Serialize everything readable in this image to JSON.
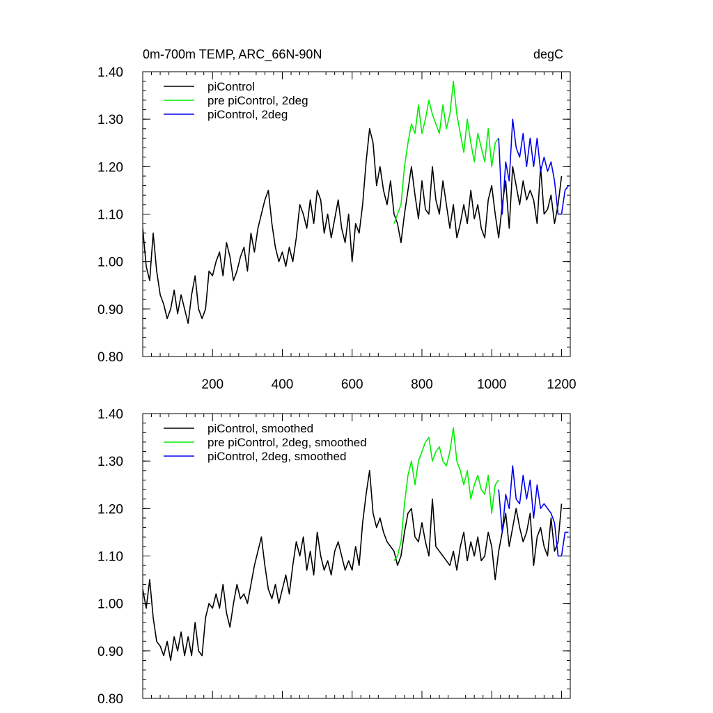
{
  "chart_data": [
    {
      "type": "line",
      "title_left": "0m-700m TEMP, ARC_66N-90N",
      "title_right": "degC",
      "xlabel": "",
      "ylabel": "",
      "xlim": [
        0,
        1225
      ],
      "ylim": [
        0.8,
        1.4
      ],
      "x_ticks": [
        200,
        400,
        600,
        800,
        1000,
        1200
      ],
      "x_tick_labels": [
        "200",
        "400",
        "600",
        "800",
        "1000",
        "1200"
      ],
      "y_ticks": [
        0.8,
        0.9,
        1.0,
        1.1,
        1.2,
        1.3,
        1.4
      ],
      "y_tick_labels": [
        "0.80",
        "0.90",
        "1.00",
        "1.10",
        "1.20",
        "1.30",
        "1.40"
      ],
      "legend_position": "top-left",
      "series": [
        {
          "name": "piControl",
          "color": "#000000",
          "x": [
            0,
            10,
            20,
            30,
            40,
            50,
            60,
            70,
            80,
            90,
            100,
            110,
            120,
            130,
            140,
            150,
            160,
            170,
            180,
            190,
            200,
            210,
            220,
            230,
            240,
            250,
            260,
            270,
            280,
            290,
            300,
            310,
            320,
            330,
            340,
            350,
            360,
            370,
            380,
            390,
            400,
            410,
            420,
            430,
            440,
            450,
            460,
            470,
            480,
            490,
            500,
            510,
            520,
            530,
            540,
            550,
            560,
            570,
            580,
            590,
            600,
            610,
            620,
            630,
            640,
            650,
            660,
            670,
            680,
            690,
            700,
            710,
            720,
            730,
            740,
            750,
            760,
            770,
            780,
            790,
            800,
            810,
            820,
            830,
            840,
            850,
            860,
            870,
            880,
            890,
            900,
            910,
            920,
            930,
            940,
            950,
            960,
            970,
            980,
            990,
            1000,
            1010,
            1020,
            1030,
            1040,
            1050,
            1060,
            1070,
            1080,
            1090,
            1100,
            1110,
            1120,
            1130,
            1140,
            1150,
            1160,
            1170,
            1180,
            1190,
            1200
          ],
          "values": [
            1.07,
            0.99,
            0.96,
            1.06,
            0.98,
            0.93,
            0.91,
            0.88,
            0.9,
            0.94,
            0.89,
            0.93,
            0.9,
            0.87,
            0.93,
            0.97,
            0.9,
            0.88,
            0.9,
            0.98,
            0.97,
            1.0,
            1.02,
            0.97,
            1.04,
            1.01,
            0.96,
            0.98,
            1.01,
            1.03,
            0.98,
            1.06,
            1.02,
            1.07,
            1.1,
            1.13,
            1.15,
            1.08,
            1.03,
            1.0,
            1.02,
            0.99,
            1.03,
            1.0,
            1.05,
            1.12,
            1.1,
            1.07,
            1.13,
            1.08,
            1.15,
            1.13,
            1.06,
            1.1,
            1.05,
            1.09,
            1.13,
            1.07,
            1.04,
            1.1,
            1.0,
            1.08,
            1.06,
            1.12,
            1.21,
            1.28,
            1.25,
            1.16,
            1.2,
            1.15,
            1.12,
            1.17,
            1.1,
            1.08,
            1.04,
            1.1,
            1.15,
            1.2,
            1.14,
            1.09,
            1.17,
            1.11,
            1.1,
            1.2,
            1.13,
            1.1,
            1.17,
            1.12,
            1.07,
            1.12,
            1.05,
            1.08,
            1.12,
            1.08,
            1.15,
            1.09,
            1.12,
            1.07,
            1.05,
            1.13,
            1.16,
            1.1,
            1.05,
            1.12,
            1.17,
            1.07,
            1.2,
            1.16,
            1.12,
            1.17,
            1.13,
            1.15,
            1.13,
            1.08,
            1.2,
            1.1,
            1.11,
            1.14,
            1.08,
            1.12,
            1.18
          ]
        },
        {
          "name": "pre piControl, 2deg",
          "color": "#00ee00",
          "x": [
            720,
            730,
            740,
            750,
            760,
            770,
            780,
            790,
            800,
            810,
            820,
            830,
            840,
            850,
            860,
            870,
            880,
            890,
            900,
            910,
            920,
            930,
            940,
            950,
            960,
            970,
            980,
            990,
            1000,
            1010,
            1020
          ],
          "values": [
            1.08,
            1.1,
            1.12,
            1.2,
            1.25,
            1.29,
            1.27,
            1.33,
            1.27,
            1.3,
            1.34,
            1.31,
            1.29,
            1.27,
            1.33,
            1.28,
            1.31,
            1.38,
            1.31,
            1.27,
            1.23,
            1.3,
            1.25,
            1.21,
            1.27,
            1.24,
            1.21,
            1.28,
            1.2,
            1.25,
            1.26
          ]
        },
        {
          "name": "piControl, 2deg",
          "color": "#0000ee",
          "x": [
            1020,
            1030,
            1040,
            1050,
            1060,
            1070,
            1080,
            1090,
            1100,
            1110,
            1120,
            1130,
            1140,
            1150,
            1160,
            1170,
            1180,
            1190,
            1200,
            1210,
            1220
          ],
          "values": [
            1.26,
            1.1,
            1.21,
            1.17,
            1.3,
            1.24,
            1.22,
            1.27,
            1.2,
            1.26,
            1.2,
            1.26,
            1.19,
            1.22,
            1.19,
            1.21,
            1.17,
            1.1,
            1.1,
            1.15,
            1.16
          ]
        }
      ]
    },
    {
      "type": "line",
      "title_left": "",
      "title_right": "",
      "xlabel": "",
      "ylabel": "",
      "xlim": [
        0,
        1225
      ],
      "ylim": [
        0.8,
        1.4
      ],
      "x_ticks": [
        200,
        400,
        600,
        800,
        1000,
        1200
      ],
      "x_tick_labels": [],
      "y_ticks": [
        0.8,
        0.9,
        1.0,
        1.1,
        1.2,
        1.3,
        1.4
      ],
      "y_tick_labels": [
        "0.80",
        "0.90",
        "1.00",
        "1.10",
        "1.20",
        "1.30",
        "1.40"
      ],
      "legend_position": "top-left",
      "series": [
        {
          "name": "piControl, smoothed",
          "color": "#000000",
          "x": [
            0,
            10,
            20,
            30,
            40,
            50,
            60,
            70,
            80,
            90,
            100,
            110,
            120,
            130,
            140,
            150,
            160,
            170,
            180,
            190,
            200,
            210,
            220,
            230,
            240,
            250,
            260,
            270,
            280,
            290,
            300,
            310,
            320,
            330,
            340,
            350,
            360,
            370,
            380,
            390,
            400,
            410,
            420,
            430,
            440,
            450,
            460,
            470,
            480,
            490,
            500,
            510,
            520,
            530,
            540,
            550,
            560,
            570,
            580,
            590,
            600,
            610,
            620,
            630,
            640,
            650,
            660,
            670,
            680,
            690,
            700,
            710,
            720,
            730,
            740,
            750,
            760,
            770,
            780,
            790,
            800,
            810,
            820,
            830,
            840,
            850,
            860,
            870,
            880,
            890,
            900,
            910,
            920,
            930,
            940,
            950,
            960,
            970,
            980,
            990,
            1000,
            1010,
            1020,
            1030,
            1040,
            1050,
            1060,
            1070,
            1080,
            1090,
            1100,
            1110,
            1120,
            1130,
            1140,
            1150,
            1160,
            1170,
            1180,
            1190,
            1200
          ],
          "values": [
            1.03,
            0.99,
            1.05,
            0.97,
            0.92,
            0.91,
            0.89,
            0.92,
            0.88,
            0.93,
            0.9,
            0.94,
            0.89,
            0.93,
            0.89,
            0.96,
            0.9,
            0.89,
            0.97,
            1.0,
            0.99,
            1.02,
            0.99,
            1.04,
            0.98,
            0.95,
            1.0,
            1.04,
            1.01,
            1.02,
            1.0,
            1.04,
            1.08,
            1.11,
            1.14,
            1.08,
            1.03,
            1.01,
            1.04,
            1.0,
            1.03,
            1.06,
            1.02,
            1.08,
            1.13,
            1.1,
            1.14,
            1.07,
            1.11,
            1.06,
            1.15,
            1.1,
            1.07,
            1.09,
            1.06,
            1.11,
            1.13,
            1.1,
            1.07,
            1.09,
            1.07,
            1.12,
            1.08,
            1.17,
            1.23,
            1.28,
            1.19,
            1.16,
            1.18,
            1.15,
            1.13,
            1.12,
            1.11,
            1.08,
            1.1,
            1.15,
            1.19,
            1.2,
            1.14,
            1.13,
            1.17,
            1.13,
            1.1,
            1.22,
            1.12,
            1.11,
            1.1,
            1.09,
            1.08,
            1.11,
            1.07,
            1.12,
            1.15,
            1.09,
            1.13,
            1.1,
            1.14,
            1.09,
            1.1,
            1.15,
            1.12,
            1.05,
            1.11,
            1.15,
            1.19,
            1.12,
            1.16,
            1.2,
            1.16,
            1.13,
            1.15,
            1.19,
            1.08,
            1.14,
            1.16,
            1.12,
            1.1,
            1.18,
            1.11,
            1.13,
            1.21
          ]
        },
        {
          "name": "pre piControl, 2deg, smoothed",
          "color": "#00ee00",
          "x": [
            720,
            730,
            740,
            750,
            760,
            770,
            780,
            790,
            800,
            810,
            820,
            830,
            840,
            850,
            860,
            870,
            880,
            890,
            900,
            910,
            920,
            930,
            940,
            950,
            960,
            970,
            980,
            990,
            1000,
            1010,
            1020
          ],
          "values": [
            1.09,
            1.1,
            1.13,
            1.21,
            1.27,
            1.3,
            1.25,
            1.3,
            1.32,
            1.34,
            1.35,
            1.3,
            1.32,
            1.33,
            1.3,
            1.29,
            1.32,
            1.37,
            1.3,
            1.28,
            1.25,
            1.28,
            1.22,
            1.25,
            1.27,
            1.24,
            1.23,
            1.27,
            1.19,
            1.25,
            1.26
          ]
        },
        {
          "name": "piControl, 2deg, smoothed",
          "color": "#0000ee",
          "x": [
            1020,
            1030,
            1040,
            1050,
            1060,
            1070,
            1080,
            1090,
            1100,
            1110,
            1120,
            1130,
            1140,
            1150,
            1160,
            1170,
            1180,
            1190,
            1200,
            1210,
            1220
          ],
          "values": [
            1.24,
            1.15,
            1.23,
            1.2,
            1.29,
            1.22,
            1.21,
            1.27,
            1.22,
            1.26,
            1.18,
            1.25,
            1.2,
            1.21,
            1.2,
            1.19,
            1.17,
            1.1,
            1.1,
            1.15,
            1.15
          ]
        }
      ]
    }
  ]
}
